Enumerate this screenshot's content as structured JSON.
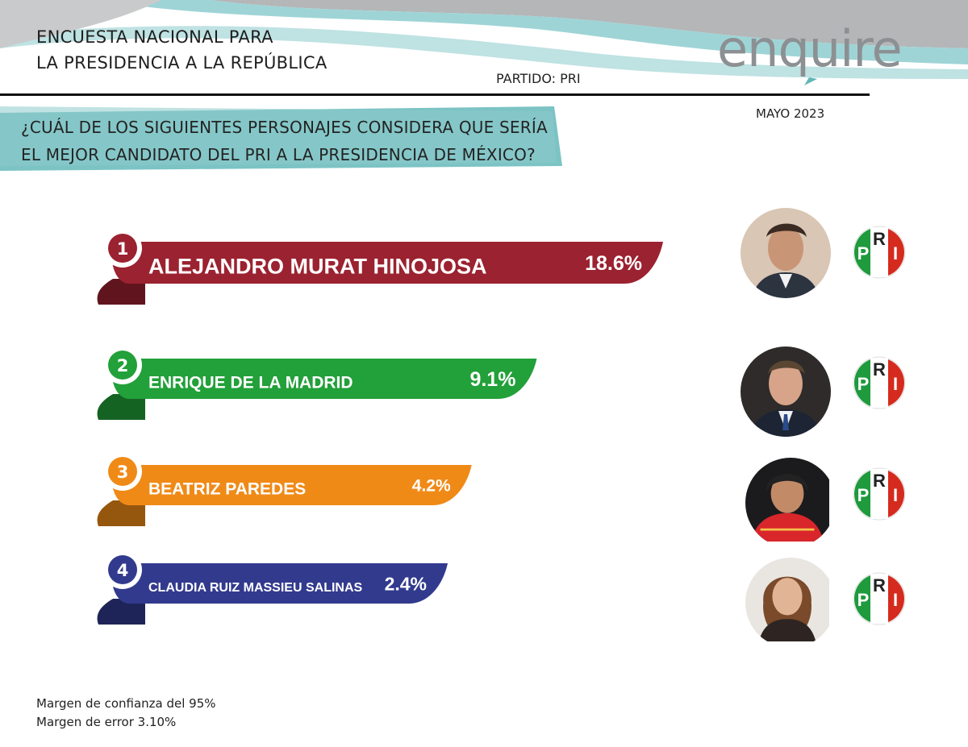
{
  "header": {
    "title_line1": "ENCUESTA NACIONAL PARA",
    "title_line2": "LA PRESIDENCIA A LA REPÚBLICA",
    "party": "PARTIDO: PRI",
    "brand": "enquire",
    "date": "MAYO 2023"
  },
  "question": {
    "line1": "¿CUÁL DE LOS SIGUIENTES PERSONAJES  CONSIDERA QUE SERÍA",
    "line2": "EL MEJOR CANDIDATO DEL PRI A LA PRESIDENCIA  DE MÉXICO?"
  },
  "colors": {
    "teal": "#7cc3c4",
    "rank1": "#9b2230",
    "rank2": "#22a039",
    "rank3": "#f08a17",
    "rank4": "#323a8e",
    "pri_green": "#1f9a3d",
    "pri_red": "#d52b1e"
  },
  "chart_data": {
    "type": "bar",
    "categories": [
      "ALEJANDRO MURAT  HINOJOSA",
      "ENRIQUE DE LA MADRID",
      "BEATRIZ PAREDES",
      "CLAUDIA RUIZ MASSIEU SALINAS"
    ],
    "ranks": [
      "1",
      "2",
      "3",
      "4"
    ],
    "values": [
      18.6,
      9.1,
      4.2,
      2.4
    ],
    "value_labels": [
      "18.6%",
      "9.1%",
      "4.2%",
      "2.4%"
    ],
    "unit": "%"
  },
  "logo_letters": [
    "P",
    "R",
    "I"
  ],
  "footer": {
    "line1": "Margen de confianza del 95%",
    "line2": "Margen de error 3.10%"
  }
}
